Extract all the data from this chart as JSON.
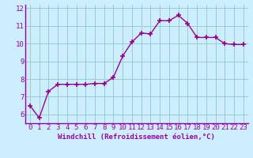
{
  "x": [
    0,
    1,
    2,
    3,
    4,
    5,
    6,
    7,
    8,
    9,
    10,
    11,
    12,
    13,
    14,
    15,
    16,
    17,
    18,
    19,
    20,
    21,
    22,
    23
  ],
  "y": [
    6.5,
    5.8,
    7.3,
    7.7,
    7.7,
    7.7,
    7.7,
    7.75,
    7.75,
    8.1,
    9.3,
    10.1,
    10.6,
    10.55,
    11.3,
    11.3,
    11.6,
    11.15,
    10.35,
    10.35,
    10.35,
    10.0,
    9.95,
    9.95
  ],
  "line_color": "#990099",
  "marker": "+",
  "markersize": 4,
  "linewidth": 1,
  "xlabel": "Windchill (Refroidissement éolien,°C)",
  "ylabel": "",
  "xlim": [
    -0.5,
    23.5
  ],
  "ylim": [
    5.5,
    12.2
  ],
  "yticks": [
    6,
    7,
    8,
    9,
    10,
    11,
    12
  ],
  "xticks": [
    0,
    1,
    2,
    3,
    4,
    5,
    6,
    7,
    8,
    9,
    10,
    11,
    12,
    13,
    14,
    15,
    16,
    17,
    18,
    19,
    20,
    21,
    22,
    23
  ],
  "bg_color": "#cceeff",
  "grid_color": "#99cccc",
  "spine_color": "#9900aa",
  "tick_label_color": "#9900aa",
  "xlabel_color": "#9900aa",
  "xlabel_fontsize": 6.5,
  "tick_fontsize": 6.5
}
